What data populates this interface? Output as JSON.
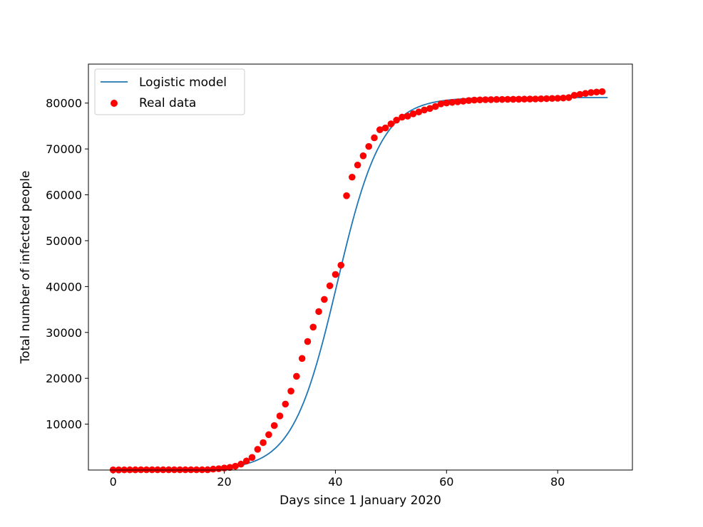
{
  "chart_data": {
    "type": "scatter",
    "xlabel": "Days since 1 January 2020",
    "ylabel": "Total number of infected people",
    "xlim": [
      -4.45,
      93.45
    ],
    "ylim": [
      0,
      88500
    ],
    "xticks": [
      0,
      20,
      40,
      60,
      80
    ],
    "yticks": [
      10000,
      20000,
      30000,
      40000,
      50000,
      60000,
      70000,
      80000
    ],
    "grid": false,
    "legend_position": "upper-left",
    "series": [
      {
        "name": "Logistic model",
        "kind": "line",
        "color": "#1f77b4",
        "model": {
          "a": 4.0,
          "b": 40.3,
          "c": 81200
        },
        "x_range": [
          0,
          89
        ]
      },
      {
        "name": "Real data",
        "kind": "scatter",
        "color": "#ff0000",
        "x": [
          0,
          1,
          2,
          3,
          4,
          5,
          6,
          7,
          8,
          9,
          10,
          11,
          12,
          13,
          14,
          15,
          16,
          17,
          18,
          19,
          20,
          21,
          22,
          23,
          24,
          25,
          26,
          27,
          28,
          29,
          30,
          31,
          32,
          33,
          34,
          35,
          36,
          37,
          38,
          39,
          40,
          41,
          42,
          43,
          44,
          45,
          46,
          47,
          48,
          49,
          50,
          51,
          52,
          53,
          54,
          55,
          56,
          57,
          58,
          59,
          60,
          61,
          62,
          63,
          64,
          65,
          66,
          67,
          68,
          69,
          70,
          71,
          72,
          73,
          74,
          75,
          76,
          77,
          78,
          79,
          80,
          81,
          82,
          83,
          84,
          85,
          86,
          87,
          88
        ],
        "values": [
          27,
          27,
          41,
          44,
          44,
          59,
          59,
          59,
          59,
          59,
          59,
          59,
          59,
          59,
          59,
          59,
          59,
          62,
          198,
          291,
          440,
          571,
          830,
          1287,
          1975,
          2744,
          4515,
          5974,
          7711,
          9692,
          11791,
          14380,
          17205,
          20438,
          24324,
          28018,
          31161,
          34546,
          37198,
          40171,
          42638,
          44653,
          59804,
          63851,
          66492,
          68500,
          70548,
          72436,
          74185,
          74576,
          75465,
          76288,
          76936,
          77150,
          77658,
          78064,
          78497,
          78824,
          79251,
          79824,
          80026,
          80151,
          80270,
          80409,
          80552,
          80651,
          80695,
          80735,
          80754,
          80778,
          80793,
          80813,
          80824,
          80844,
          80860,
          80881,
          80894,
          80928,
          80967,
          81008,
          81048,
          81103,
          81200,
          81700,
          81900,
          82100,
          82300,
          82400,
          82500
        ]
      }
    ]
  }
}
